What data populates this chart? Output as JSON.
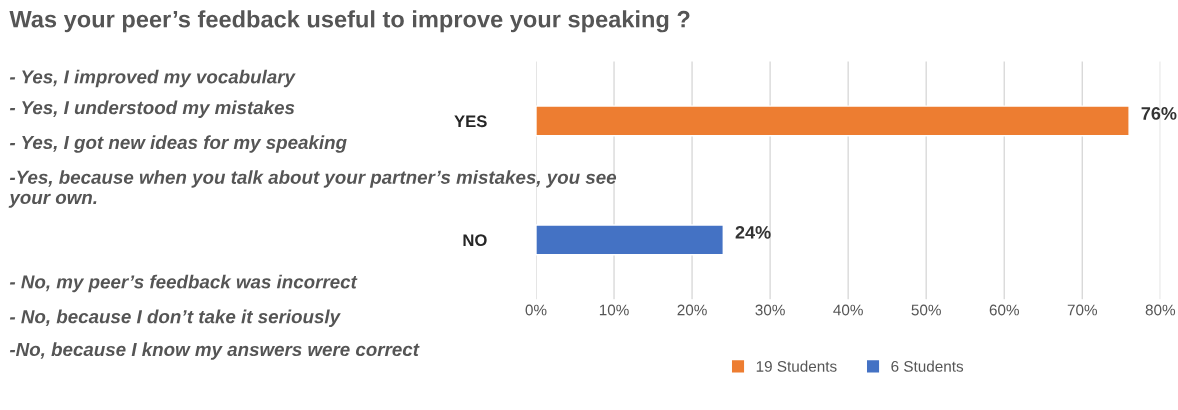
{
  "chart_data": {
    "type": "bar",
    "orientation": "horizontal",
    "title": "Was your peer’s feedback useful to improve your speaking ?",
    "categories": [
      "YES",
      "NO"
    ],
    "series": [
      {
        "name": "19 Students",
        "color": "#ed7d31",
        "values": [
          76,
          null
        ],
        "value_labels": [
          "76%",
          null
        ]
      },
      {
        "name": "6 Students",
        "color": "#4472c4",
        "values": [
          null,
          24
        ],
        "value_labels": [
          null,
          "24%"
        ]
      }
    ],
    "xlim": [
      0,
      80
    ],
    "xticks": [
      {
        "value": 0,
        "label": "0%"
      },
      {
        "value": 10,
        "label": "10%"
      },
      {
        "value": 20,
        "label": "20%"
      },
      {
        "value": 30,
        "label": "30%"
      },
      {
        "value": 40,
        "label": "40%"
      },
      {
        "value": 50,
        "label": "50%"
      },
      {
        "value": 60,
        "label": "60%"
      },
      {
        "value": 70,
        "label": "70%"
      },
      {
        "value": 80,
        "label": "80%"
      }
    ],
    "grid": "x",
    "legend": "bottom",
    "annotations": [
      "- Yes, I improved my vocabulary",
      "- Yes, I understood my mistakes",
      "- Yes, I got new ideas for my speaking",
      "-Yes, because when you talk about your partner’s mistakes, you see your own.",
      "- No, my peer’s feedback was incorrect",
      "- No, because I don’t take it seriously",
      "-No, because I know my answers were correct"
    ]
  }
}
